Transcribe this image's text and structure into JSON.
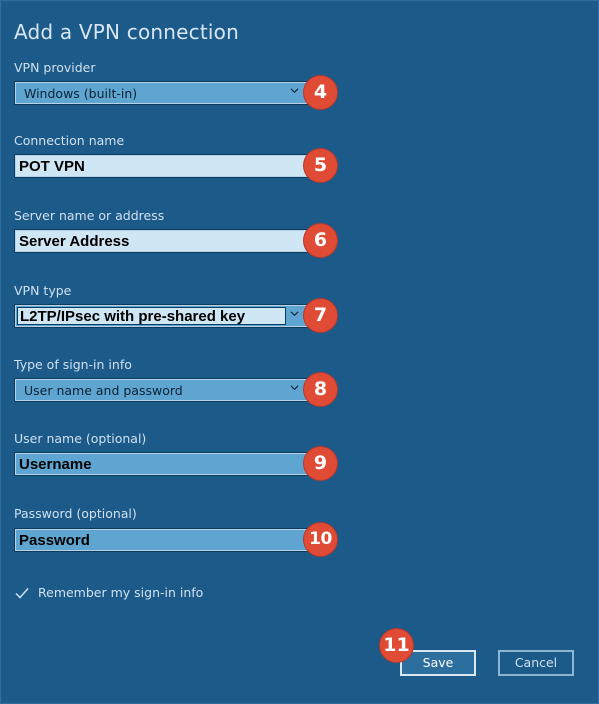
{
  "title": "Add a VPN connection",
  "vpn_provider": {
    "label": "VPN provider",
    "value": "Windows (built-in)",
    "badge": "4"
  },
  "connection_name": {
    "label": "Connection name",
    "value": "POT VPN",
    "badge": "5"
  },
  "server": {
    "label": "Server name or address",
    "value": "Server Address",
    "badge": "6"
  },
  "vpn_type": {
    "label": "VPN type",
    "value": "L2TP/IPsec with pre-shared key",
    "badge": "7"
  },
  "signin_type": {
    "label": "Type of sign-in info",
    "value": "User name and password",
    "badge": "8"
  },
  "username": {
    "label": "User name (optional)",
    "value": "Username",
    "badge": "9"
  },
  "password": {
    "label": "Password (optional)",
    "value": "Password",
    "badge": "10"
  },
  "remember": {
    "label": "Remember my sign-in info",
    "checked": true
  },
  "buttons": {
    "save": "Save",
    "cancel": "Cancel",
    "save_badge": "11"
  },
  "colors": {
    "background": "#1c5a8a",
    "badge": "#e04b35",
    "field": "#5ea6d1",
    "field_light": "#cfe6f4"
  },
  "icons": {
    "dropdown": "chevron-down-icon",
    "check": "checkmark-icon"
  }
}
